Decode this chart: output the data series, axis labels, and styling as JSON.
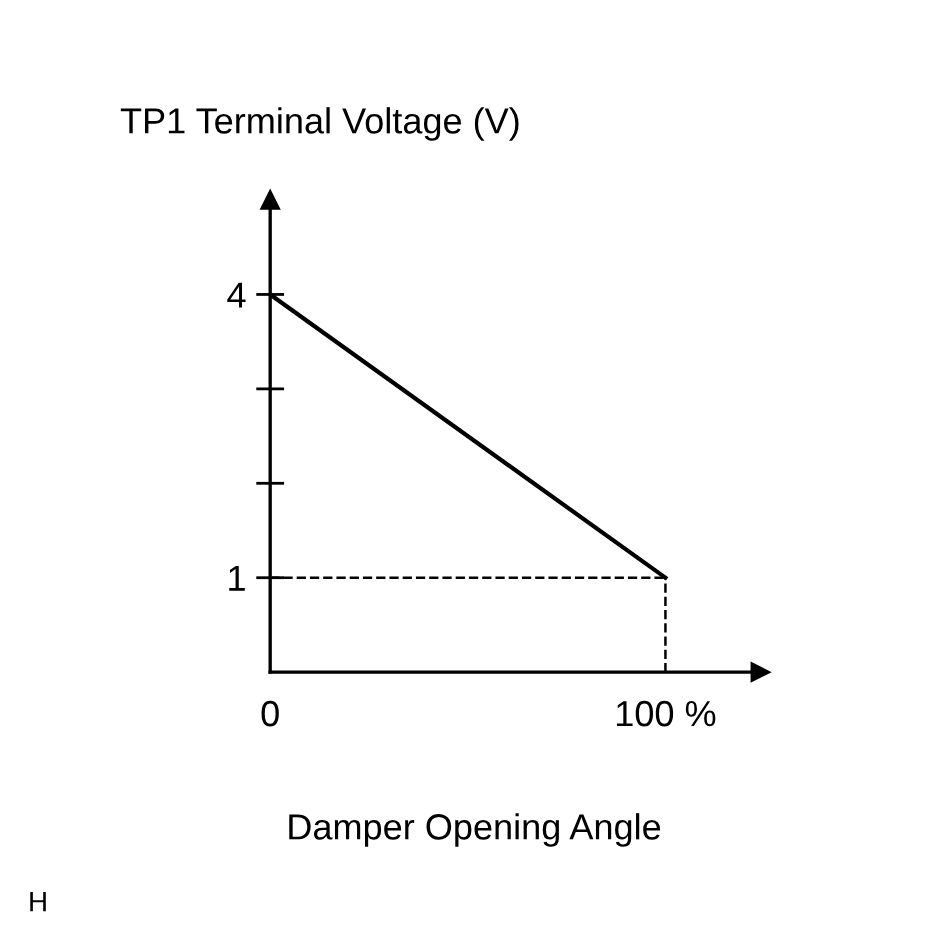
{
  "chart_data": {
    "type": "line",
    "title": "TP1 Terminal Voltage (V)",
    "xlabel": "Damper Opening Angle",
    "x": [
      0,
      100
    ],
    "series": [
      {
        "color": "#000000",
        "values": [
          4,
          1
        ]
      }
    ],
    "xlim": [
      0,
      124
    ],
    "ylim": [
      0,
      5
    ],
    "xticks": [
      0,
      {
        "value": 100,
        "label": "100 %"
      }
    ],
    "yticks": [
      1,
      {
        "value": 2,
        "label": null
      },
      {
        "value": 3,
        "label": null
      },
      4
    ],
    "ref_lines": [
      {
        "axis": "y",
        "value": 1,
        "line_style": "dashed",
        "color": "#000000"
      },
      {
        "axis": "x",
        "value": 100,
        "line_style": "dashed",
        "color": "#000000"
      }
    ],
    "line_style": "solid",
    "marker": "none",
    "annotations": [
      "H"
    ]
  }
}
